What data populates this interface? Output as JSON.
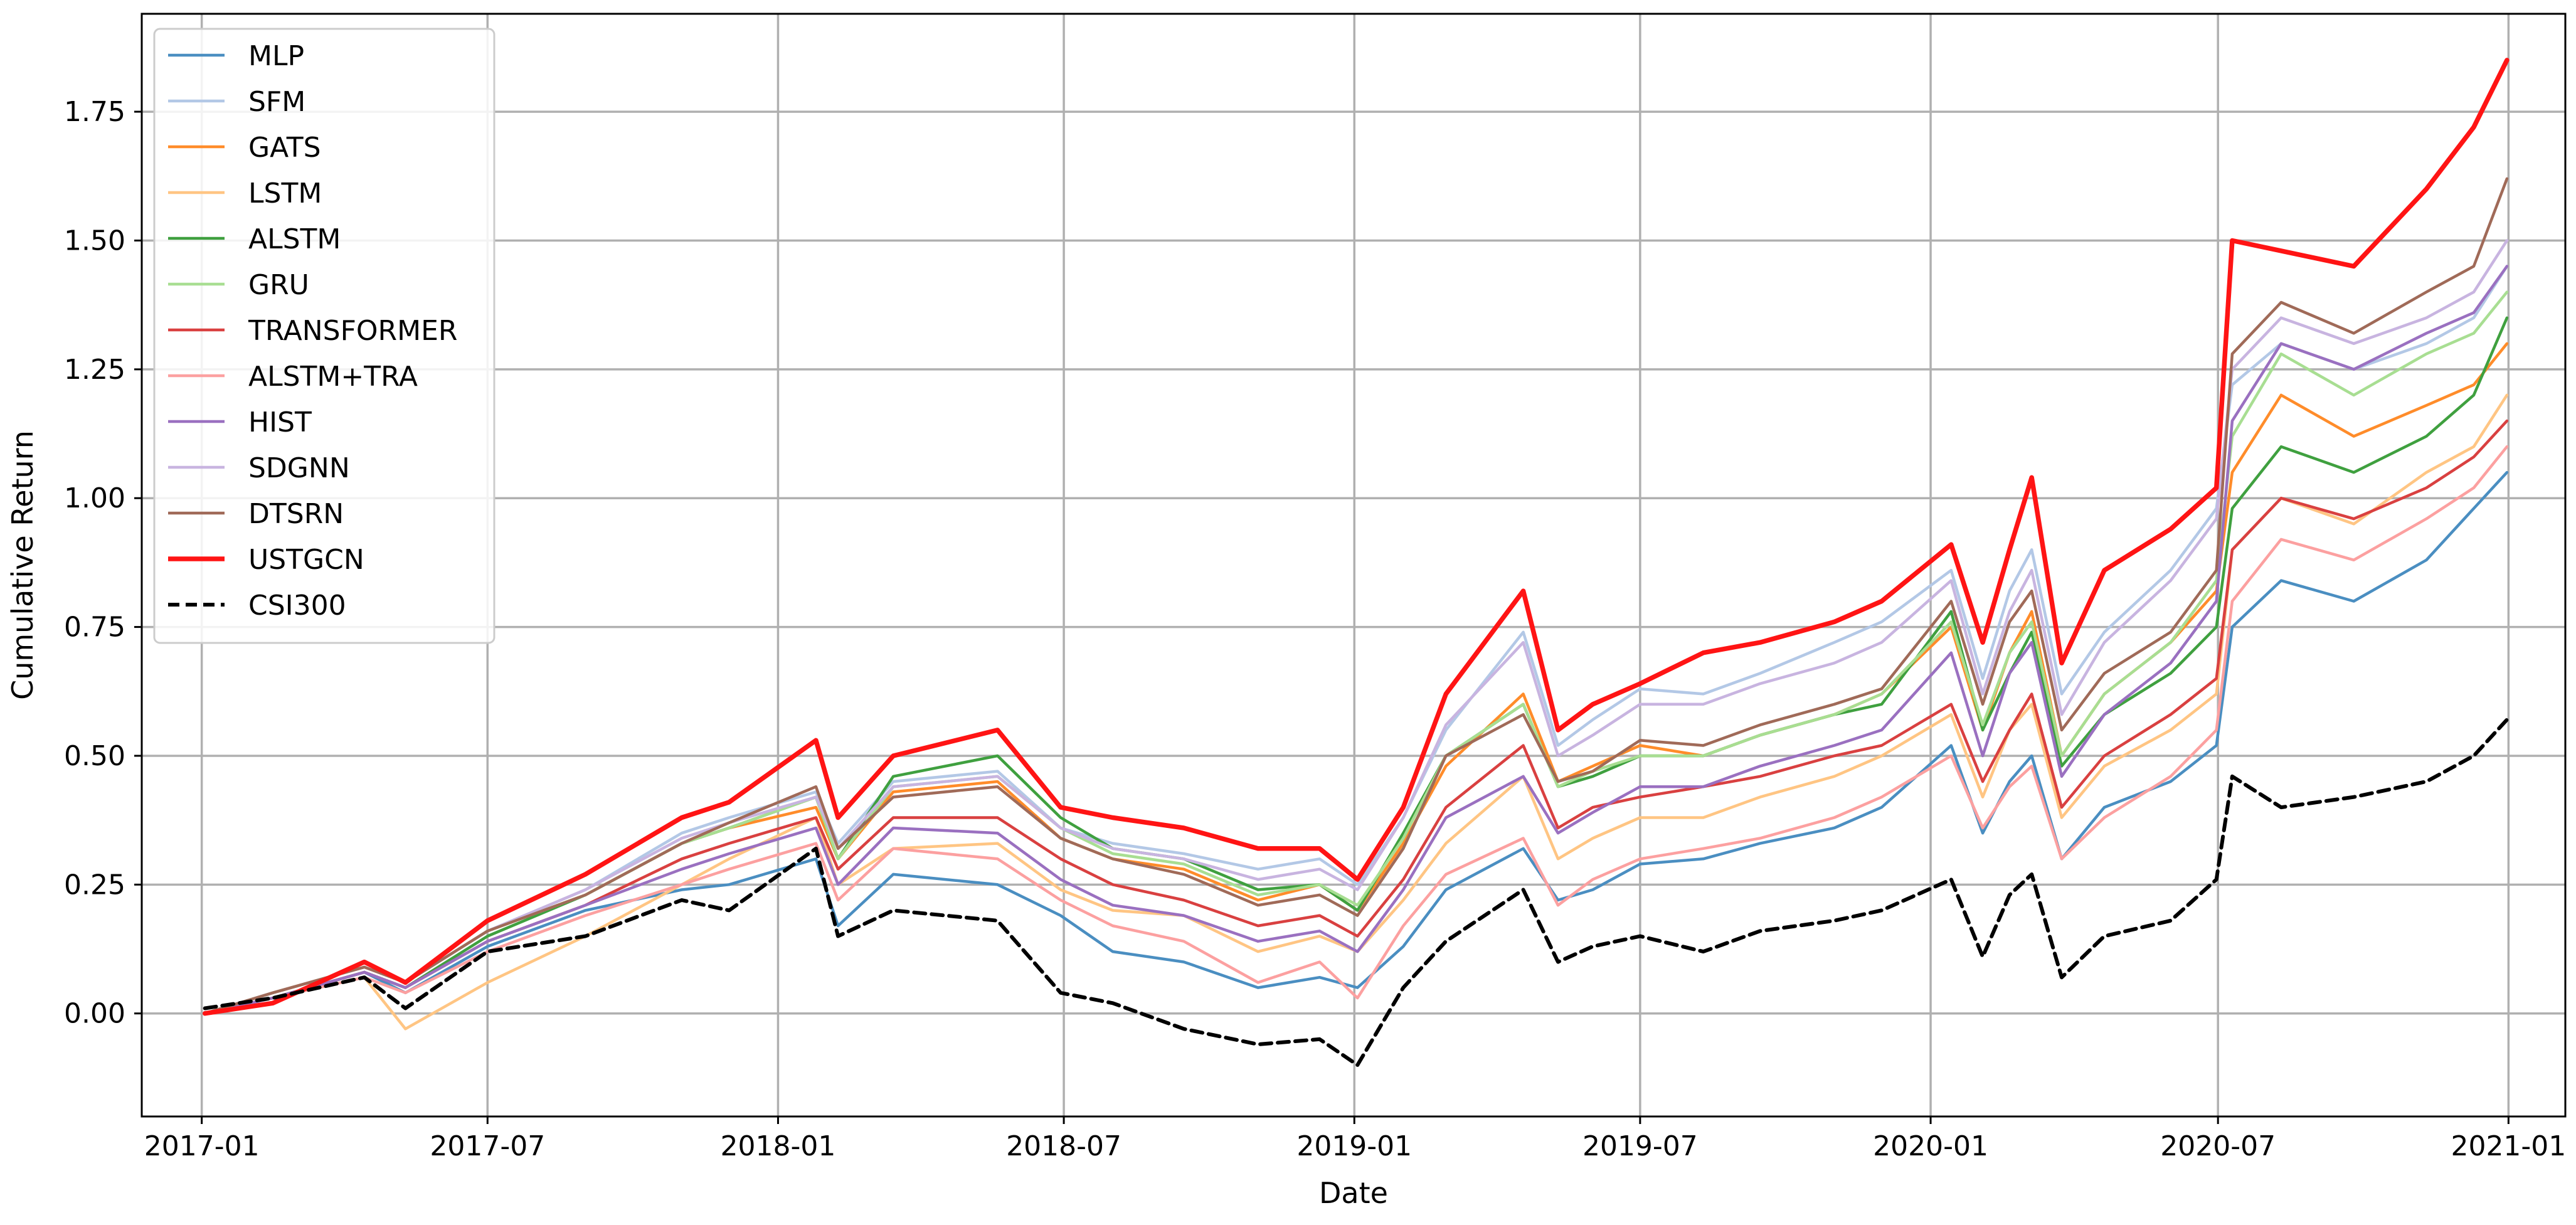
{
  "chart_data": {
    "type": "line",
    "title": "",
    "xlabel": "Date",
    "ylabel": "Cumulative Return",
    "xlim": [
      "2016-11-24",
      "2021-02-06"
    ],
    "ylim": [
      -0.2,
      1.94
    ],
    "x_ticks": [
      "2017-01",
      "2017-07",
      "2018-01",
      "2018-07",
      "2019-01",
      "2019-07",
      "2020-01",
      "2020-07",
      "2021-01"
    ],
    "y_ticks": [
      0.0,
      0.25,
      0.5,
      0.75,
      1.0,
      1.25,
      1.5,
      1.75
    ],
    "y_tick_labels": [
      "0.00",
      "0.25",
      "0.50",
      "0.75",
      "1.00",
      "1.25",
      "1.50",
      "1.75"
    ],
    "grid": true,
    "legend_position": "upper-left",
    "x_dates": [
      "2017-01-03",
      "2017-02-15",
      "2017-04-14",
      "2017-05-10",
      "2017-07-01",
      "2017-09-01",
      "2017-11-01",
      "2017-12-01",
      "2018-01-25",
      "2018-02-08",
      "2018-03-15",
      "2018-05-20",
      "2018-06-29",
      "2018-08-01",
      "2018-09-15",
      "2018-11-01",
      "2018-12-10",
      "2019-01-03",
      "2019-02-01",
      "2019-02-28",
      "2019-04-18",
      "2019-05-10",
      "2019-06-01",
      "2019-07-01",
      "2019-08-10",
      "2019-09-15",
      "2019-11-01",
      "2019-12-01",
      "2020-01-14",
      "2020-02-03",
      "2020-02-20",
      "2020-03-05",
      "2020-03-24",
      "2020-04-20",
      "2020-06-01",
      "2020-06-30",
      "2020-07-10",
      "2020-08-10",
      "2020-09-25",
      "2020-11-10",
      "2020-12-10",
      "2020-12-31"
    ],
    "series": [
      {
        "name": "MLP",
        "color": "#4a8ec1",
        "width": 4.5,
        "dash": "",
        "values": [
          0.0,
          0.03,
          0.08,
          0.04,
          0.13,
          0.2,
          0.24,
          0.25,
          0.3,
          0.17,
          0.27,
          0.25,
          0.19,
          0.12,
          0.1,
          0.05,
          0.07,
          0.05,
          0.13,
          0.24,
          0.32,
          0.22,
          0.24,
          0.29,
          0.3,
          0.33,
          0.36,
          0.4,
          0.52,
          0.35,
          0.45,
          0.5,
          0.3,
          0.4,
          0.45,
          0.52,
          0.75,
          0.84,
          0.8,
          0.88,
          0.98,
          1.05
        ]
      },
      {
        "name": "SFM",
        "color": "#b3c8e6",
        "width": 4.5,
        "dash": "",
        "values": [
          0.0,
          0.04,
          0.09,
          0.06,
          0.16,
          0.24,
          0.35,
          0.38,
          0.43,
          0.33,
          0.45,
          0.47,
          0.36,
          0.33,
          0.31,
          0.28,
          0.3,
          0.25,
          0.38,
          0.55,
          0.74,
          0.52,
          0.57,
          0.63,
          0.62,
          0.66,
          0.72,
          0.76,
          0.86,
          0.65,
          0.82,
          0.9,
          0.62,
          0.74,
          0.86,
          0.98,
          1.22,
          1.3,
          1.25,
          1.3,
          1.35,
          1.45
        ]
      },
      {
        "name": "GATS",
        "color": "#ff8c2a",
        "width": 4.5,
        "dash": "",
        "values": [
          0.0,
          0.04,
          0.09,
          0.06,
          0.16,
          0.23,
          0.33,
          0.36,
          0.4,
          0.3,
          0.43,
          0.45,
          0.34,
          0.3,
          0.28,
          0.22,
          0.25,
          0.2,
          0.33,
          0.48,
          0.62,
          0.45,
          0.48,
          0.52,
          0.5,
          0.54,
          0.58,
          0.62,
          0.75,
          0.55,
          0.7,
          0.78,
          0.5,
          0.62,
          0.72,
          0.82,
          1.05,
          1.2,
          1.12,
          1.18,
          1.22,
          1.3
        ]
      },
      {
        "name": "LSTM",
        "color": "#ffc583",
        "width": 4.5,
        "dash": "",
        "values": [
          0.0,
          0.03,
          0.07,
          -0.03,
          0.06,
          0.15,
          0.25,
          0.3,
          0.38,
          0.25,
          0.32,
          0.33,
          0.24,
          0.2,
          0.19,
          0.12,
          0.15,
          0.12,
          0.22,
          0.33,
          0.46,
          0.3,
          0.34,
          0.38,
          0.38,
          0.42,
          0.46,
          0.5,
          0.58,
          0.42,
          0.55,
          0.6,
          0.38,
          0.48,
          0.55,
          0.62,
          0.9,
          1.0,
          0.95,
          1.05,
          1.1,
          1.2
        ]
      },
      {
        "name": "ALSTM",
        "color": "#3fa03f",
        "width": 4.5,
        "dash": "",
        "values": [
          0.0,
          0.03,
          0.08,
          0.05,
          0.15,
          0.23,
          0.33,
          0.36,
          0.42,
          0.3,
          0.46,
          0.5,
          0.38,
          0.32,
          0.3,
          0.24,
          0.25,
          0.2,
          0.35,
          0.5,
          0.6,
          0.44,
          0.46,
          0.5,
          0.5,
          0.54,
          0.58,
          0.6,
          0.78,
          0.55,
          0.66,
          0.74,
          0.48,
          0.58,
          0.66,
          0.75,
          0.98,
          1.1,
          1.05,
          1.12,
          1.2,
          1.35
        ]
      },
      {
        "name": "GRU",
        "color": "#a8de92",
        "width": 4.5,
        "dash": "",
        "values": [
          0.0,
          0.04,
          0.09,
          0.06,
          0.16,
          0.23,
          0.33,
          0.36,
          0.42,
          0.3,
          0.44,
          0.46,
          0.36,
          0.31,
          0.29,
          0.23,
          0.25,
          0.21,
          0.34,
          0.5,
          0.6,
          0.44,
          0.47,
          0.5,
          0.5,
          0.54,
          0.58,
          0.62,
          0.76,
          0.56,
          0.7,
          0.76,
          0.5,
          0.62,
          0.72,
          0.84,
          1.12,
          1.28,
          1.2,
          1.28,
          1.32,
          1.4
        ]
      },
      {
        "name": "TRANSFORMER",
        "color": "#d94040",
        "width": 4.5,
        "dash": "",
        "values": [
          0.0,
          0.03,
          0.08,
          0.05,
          0.14,
          0.21,
          0.3,
          0.33,
          0.38,
          0.28,
          0.38,
          0.38,
          0.3,
          0.25,
          0.22,
          0.17,
          0.19,
          0.15,
          0.26,
          0.4,
          0.52,
          0.36,
          0.4,
          0.42,
          0.44,
          0.46,
          0.5,
          0.52,
          0.6,
          0.45,
          0.55,
          0.62,
          0.4,
          0.5,
          0.58,
          0.65,
          0.9,
          1.0,
          0.96,
          1.02,
          1.08,
          1.15
        ]
      },
      {
        "name": "ALSTM+TRA",
        "color": "#fca0a0",
        "width": 4.5,
        "dash": "",
        "values": [
          0.0,
          0.03,
          0.07,
          0.04,
          0.12,
          0.19,
          0.25,
          0.28,
          0.33,
          0.22,
          0.32,
          0.3,
          0.22,
          0.17,
          0.14,
          0.06,
          0.1,
          0.03,
          0.17,
          0.27,
          0.34,
          0.21,
          0.26,
          0.3,
          0.32,
          0.34,
          0.38,
          0.42,
          0.5,
          0.36,
          0.44,
          0.48,
          0.3,
          0.38,
          0.46,
          0.55,
          0.8,
          0.92,
          0.88,
          0.96,
          1.02,
          1.1
        ]
      },
      {
        "name": "HIST",
        "color": "#9a70c0",
        "width": 4.5,
        "dash": "",
        "values": [
          0.0,
          0.03,
          0.08,
          0.05,
          0.14,
          0.21,
          0.28,
          0.31,
          0.36,
          0.25,
          0.36,
          0.35,
          0.26,
          0.21,
          0.19,
          0.14,
          0.16,
          0.12,
          0.24,
          0.38,
          0.46,
          0.35,
          0.39,
          0.44,
          0.44,
          0.48,
          0.52,
          0.55,
          0.7,
          0.5,
          0.66,
          0.72,
          0.46,
          0.58,
          0.68,
          0.8,
          1.15,
          1.3,
          1.25,
          1.32,
          1.36,
          1.45
        ]
      },
      {
        "name": "SDGNN",
        "color": "#c8b4e0",
        "width": 4.5,
        "dash": "",
        "values": [
          0.0,
          0.04,
          0.09,
          0.06,
          0.16,
          0.24,
          0.34,
          0.37,
          0.42,
          0.32,
          0.44,
          0.46,
          0.36,
          0.32,
          0.3,
          0.26,
          0.28,
          0.24,
          0.38,
          0.56,
          0.72,
          0.5,
          0.54,
          0.6,
          0.6,
          0.64,
          0.68,
          0.72,
          0.84,
          0.62,
          0.78,
          0.86,
          0.58,
          0.72,
          0.84,
          0.96,
          1.25,
          1.35,
          1.3,
          1.35,
          1.4,
          1.5
        ]
      },
      {
        "name": "DTSRN",
        "color": "#a06a58",
        "width": 4.5,
        "dash": "",
        "values": [
          0.0,
          0.04,
          0.09,
          0.06,
          0.16,
          0.23,
          0.33,
          0.37,
          0.44,
          0.32,
          0.42,
          0.44,
          0.34,
          0.3,
          0.27,
          0.21,
          0.23,
          0.19,
          0.32,
          0.5,
          0.58,
          0.45,
          0.47,
          0.53,
          0.52,
          0.56,
          0.6,
          0.63,
          0.8,
          0.6,
          0.76,
          0.82,
          0.55,
          0.66,
          0.74,
          0.86,
          1.28,
          1.38,
          1.32,
          1.4,
          1.45,
          1.62
        ]
      },
      {
        "name": "USTGCN",
        "color": "#ff1414",
        "width": 7.5,
        "dash": "",
        "values": [
          0.0,
          0.02,
          0.1,
          0.06,
          0.18,
          0.27,
          0.38,
          0.41,
          0.53,
          0.38,
          0.5,
          0.55,
          0.4,
          0.38,
          0.36,
          0.32,
          0.32,
          0.26,
          0.4,
          0.62,
          0.82,
          0.55,
          0.6,
          0.64,
          0.7,
          0.72,
          0.76,
          0.8,
          0.91,
          0.72,
          0.9,
          1.04,
          0.68,
          0.86,
          0.94,
          1.02,
          1.5,
          1.48,
          1.45,
          1.6,
          1.72,
          1.85
        ]
      },
      {
        "name": "CSI300",
        "color": "#000000",
        "width": 6,
        "dash": "18,10",
        "values": [
          0.01,
          0.03,
          0.07,
          0.01,
          0.12,
          0.15,
          0.22,
          0.2,
          0.32,
          0.15,
          0.2,
          0.18,
          0.04,
          0.02,
          -0.03,
          -0.06,
          -0.05,
          -0.1,
          0.05,
          0.14,
          0.24,
          0.1,
          0.13,
          0.15,
          0.12,
          0.16,
          0.18,
          0.2,
          0.26,
          0.11,
          0.23,
          0.27,
          0.07,
          0.15,
          0.18,
          0.26,
          0.46,
          0.4,
          0.42,
          0.45,
          0.5,
          0.57
        ]
      }
    ]
  }
}
